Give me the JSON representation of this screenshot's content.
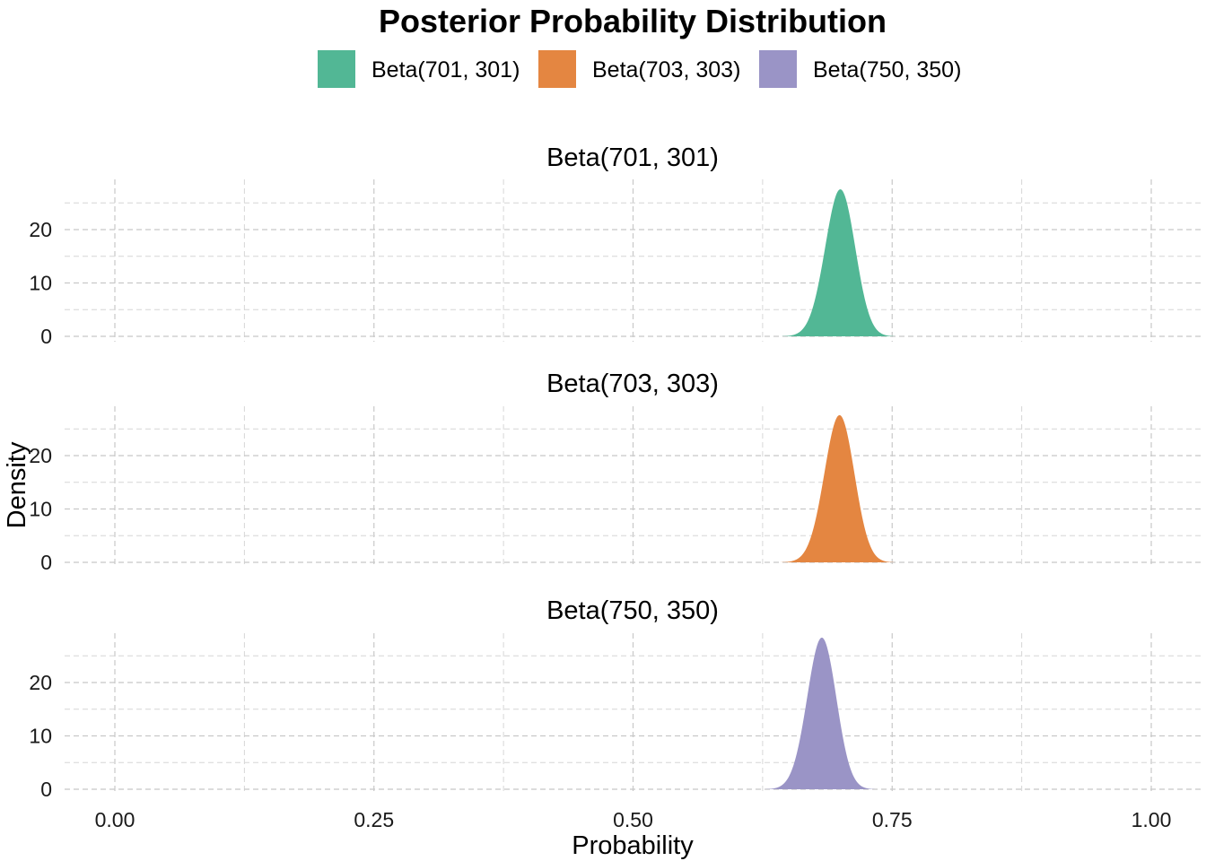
{
  "chart_data": {
    "type": "area",
    "title": "Posterior Probability Distribution",
    "xlabel": "Probability",
    "ylabel": "Density",
    "xlim": [
      0,
      1
    ],
    "ylim": [
      0,
      28
    ],
    "x_ticks": [
      "0.00",
      "0.25",
      "0.50",
      "0.75",
      "1.00"
    ],
    "x_tick_values": [
      0,
      0.25,
      0.5,
      0.75,
      1.0
    ],
    "y_ticks": [
      "0",
      "10",
      "20"
    ],
    "y_tick_values": [
      0,
      10,
      20
    ],
    "grid": true,
    "legend_position": "top",
    "series": [
      {
        "name": "Beta(701, 301)",
        "alpha": 701,
        "beta": 301,
        "color": "#52B795",
        "peak_x": 0.7,
        "peak_density": 27.5
      },
      {
        "name": "Beta(703, 303)",
        "alpha": 703,
        "beta": 303,
        "color": "#E48641",
        "peak_x": 0.699,
        "peak_density": 27.4
      },
      {
        "name": "Beta(750, 350)",
        "alpha": 750,
        "beta": 350,
        "color": "#9A94C6",
        "peak_x": 0.682,
        "peak_density": 28.3
      }
    ]
  }
}
